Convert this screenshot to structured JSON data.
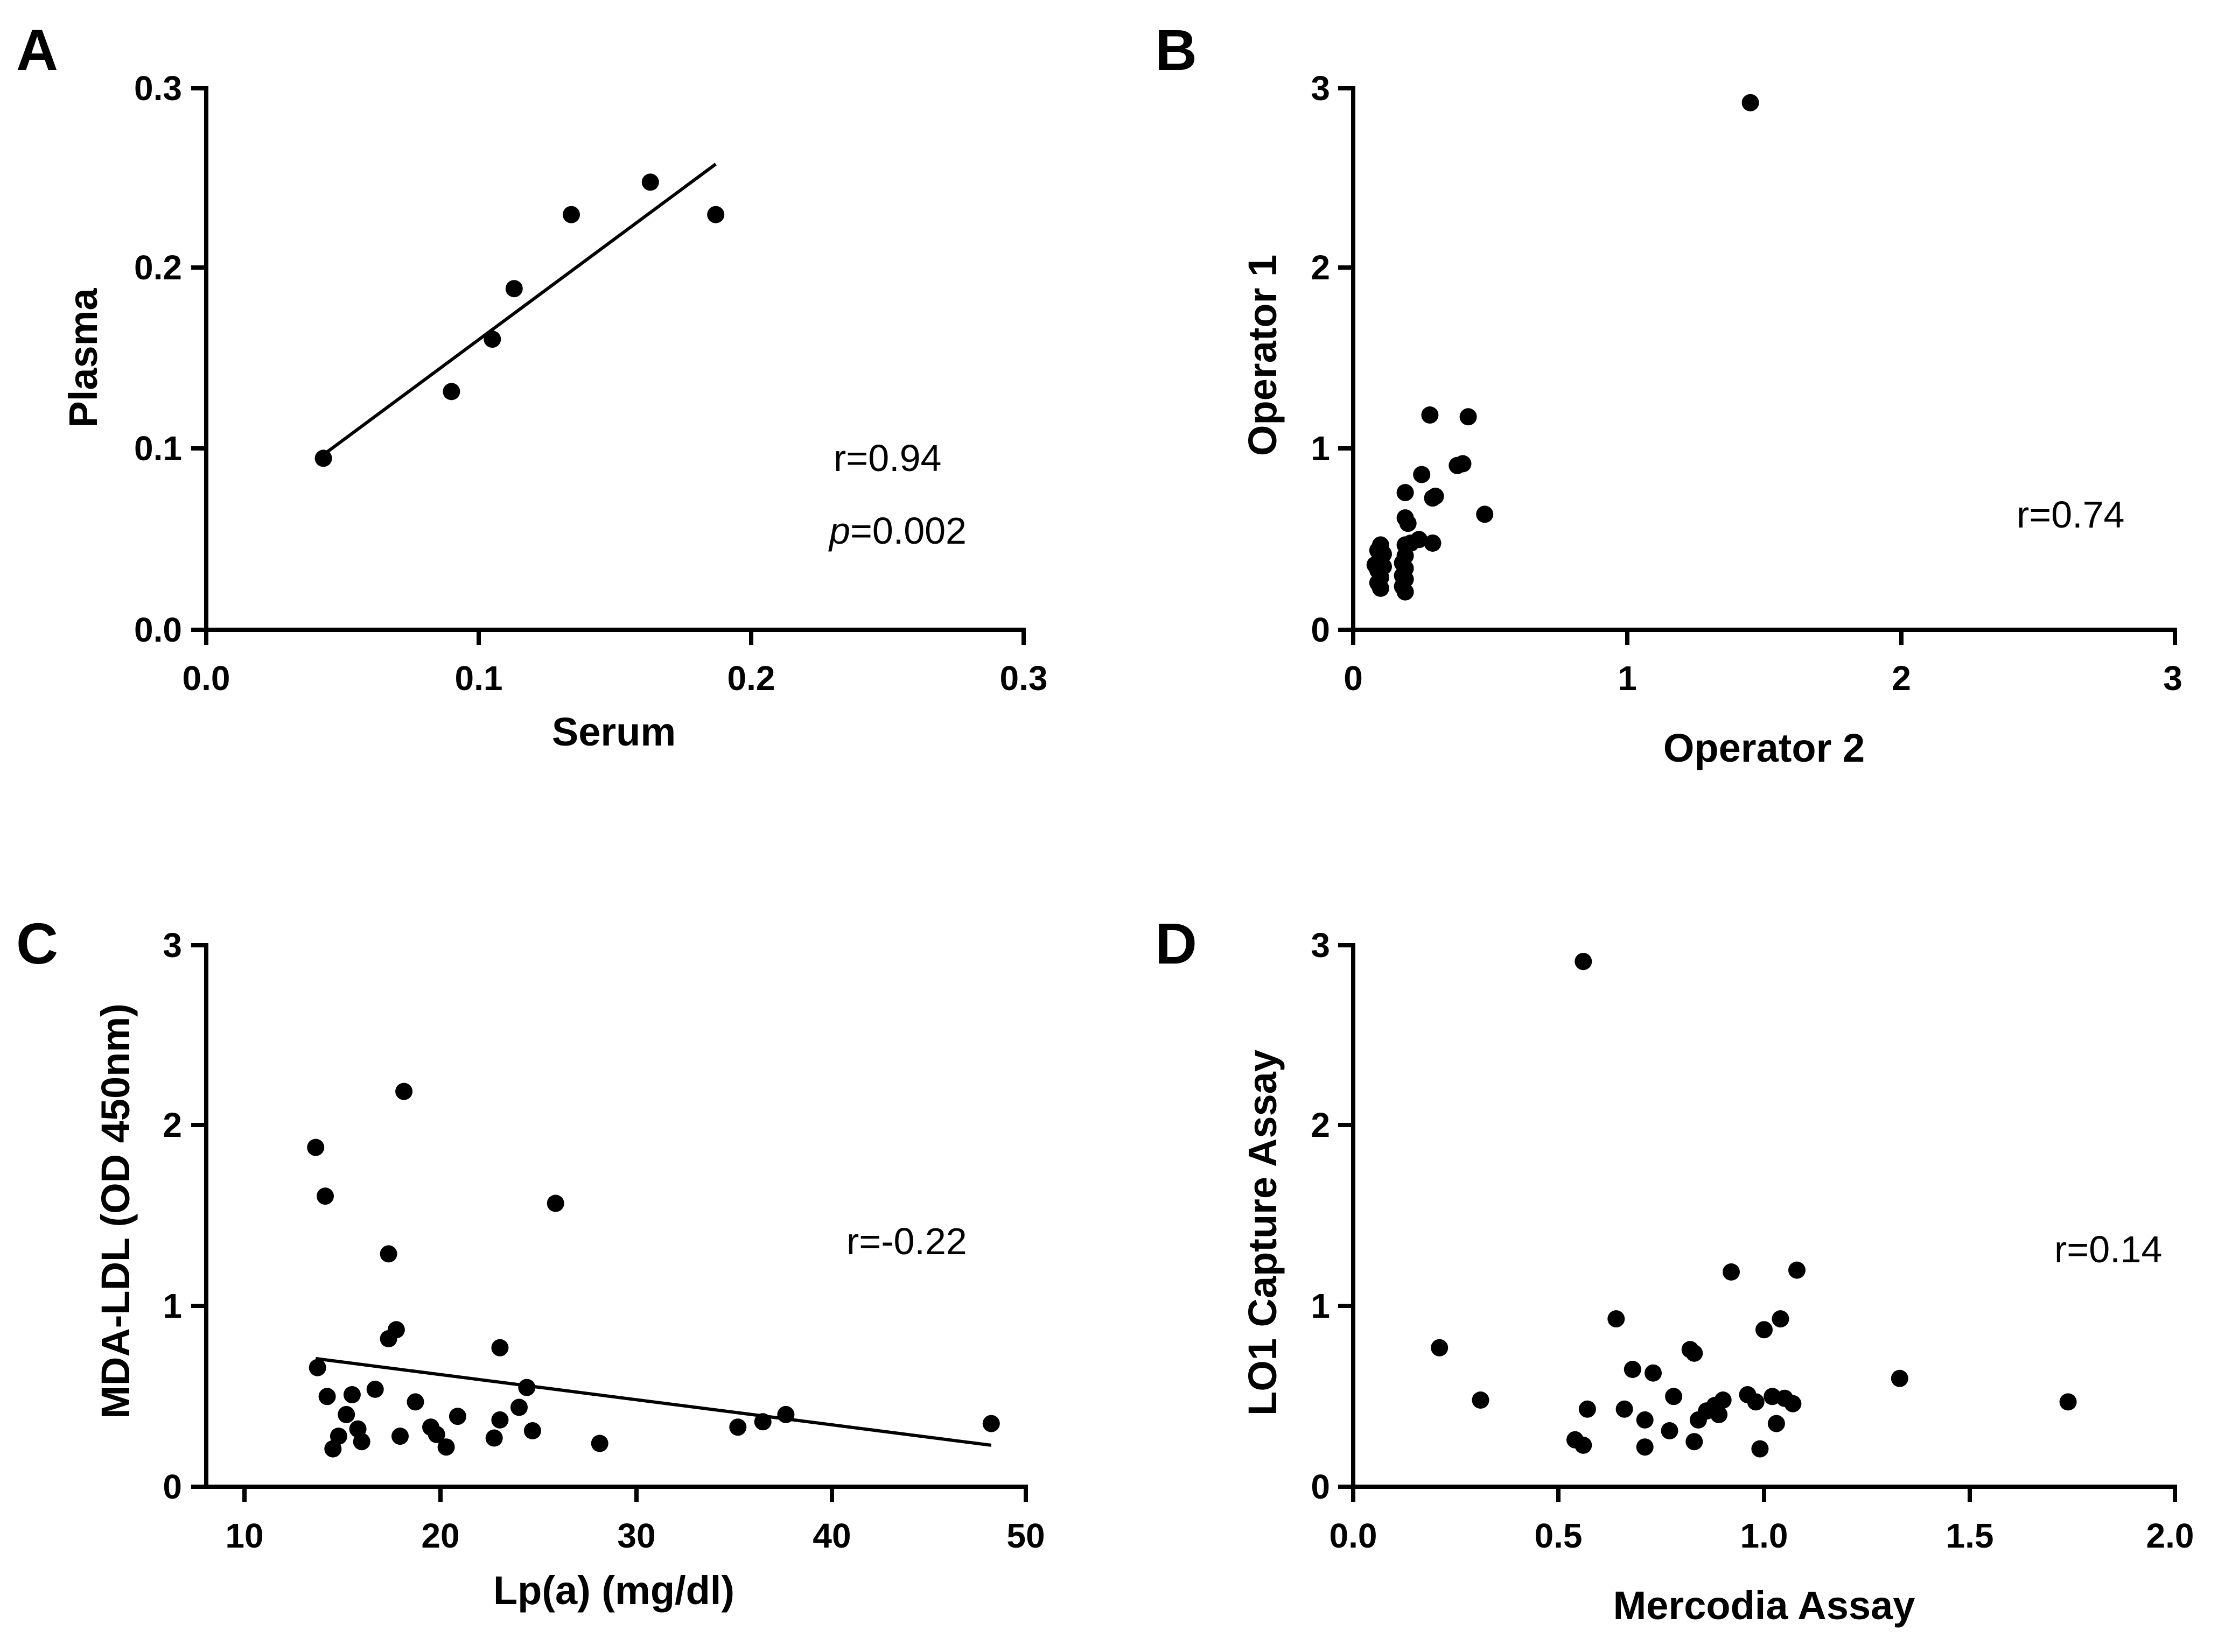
{
  "chart_data": [
    {
      "id": "A",
      "type": "scatter",
      "panel_label": "A",
      "xlabel": "Serum",
      "ylabel": "Plasma",
      "xlim": [
        0,
        0.3
      ],
      "ylim": [
        0,
        0.3
      ],
      "xticks": [
        "0.0",
        "0.1",
        "0.2",
        "0.3"
      ],
      "yticks": [
        "0.0",
        "0.1",
        "0.2",
        "0.3"
      ],
      "points": [
        [
          0.043,
          0.095
        ],
        [
          0.09,
          0.132
        ],
        [
          0.105,
          0.161
        ],
        [
          0.113,
          0.189
        ],
        [
          0.134,
          0.23
        ],
        [
          0.163,
          0.248
        ],
        [
          0.187,
          0.23
        ]
      ],
      "fit_line": [
        [
          0.043,
          0.097
        ],
        [
          0.187,
          0.258
        ]
      ],
      "annotation": {
        "r": "r=0.94",
        "p_label": "p",
        "p_value": "=0.002"
      }
    },
    {
      "id": "B",
      "type": "scatter",
      "panel_label": "B",
      "xlabel": "Operator 2",
      "ylabel": "Operator 1",
      "xlim": [
        0,
        3
      ],
      "ylim": [
        0,
        3
      ],
      "xticks": [
        "0",
        "1",
        "2",
        "3"
      ],
      "yticks": [
        "0",
        "1",
        "2",
        "3"
      ],
      "points": [
        [
          1.45,
          2.92
        ],
        [
          0.28,
          1.19
        ],
        [
          0.42,
          1.18
        ],
        [
          0.4,
          0.92
        ],
        [
          0.38,
          0.91
        ],
        [
          0.25,
          0.86
        ],
        [
          0.19,
          0.76
        ],
        [
          0.3,
          0.74
        ],
        [
          0.29,
          0.73
        ],
        [
          0.48,
          0.64
        ],
        [
          0.19,
          0.62
        ],
        [
          0.2,
          0.59
        ],
        [
          0.24,
          0.5
        ],
        [
          0.21,
          0.48
        ],
        [
          0.29,
          0.48
        ],
        [
          0.1,
          0.47
        ],
        [
          0.19,
          0.47
        ],
        [
          0.09,
          0.44
        ],
        [
          0.11,
          0.42
        ],
        [
          0.19,
          0.41
        ],
        [
          0.1,
          0.39
        ],
        [
          0.18,
          0.37
        ],
        [
          0.08,
          0.36
        ],
        [
          0.11,
          0.35
        ],
        [
          0.19,
          0.34
        ],
        [
          0.09,
          0.33
        ],
        [
          0.18,
          0.3
        ],
        [
          0.1,
          0.29
        ],
        [
          0.19,
          0.28
        ],
        [
          0.09,
          0.26
        ],
        [
          0.18,
          0.24
        ],
        [
          0.1,
          0.23
        ],
        [
          0.19,
          0.21
        ]
      ],
      "annotation": {
        "r": "r=0.74"
      }
    },
    {
      "id": "C",
      "type": "scatter",
      "panel_label": "C",
      "xlabel": "Lp(a) (mg/dl)",
      "ylabel": "MDA-LDL (OD 450nm)",
      "xlim": [
        7.3,
        50
      ],
      "ylim": [
        0,
        3
      ],
      "xtick_values": [
        10,
        20,
        30,
        40,
        50
      ],
      "xticks": [
        "10",
        "20",
        "30",
        "40",
        "50"
      ],
      "ytick_values": [
        0,
        1,
        2,
        3
      ],
      "yticks": [
        "0",
        "1",
        "2",
        "3"
      ],
      "points": [
        [
          17.6,
          2.19
        ],
        [
          13.0,
          1.88
        ],
        [
          13.5,
          1.61
        ],
        [
          25.5,
          1.57
        ],
        [
          16.8,
          1.29
        ],
        [
          17.2,
          0.87
        ],
        [
          16.8,
          0.82
        ],
        [
          22.6,
          0.77
        ],
        [
          13.1,
          0.66
        ],
        [
          24.0,
          0.55
        ],
        [
          16.1,
          0.54
        ],
        [
          14.9,
          0.51
        ],
        [
          13.6,
          0.5
        ],
        [
          18.2,
          0.47
        ],
        [
          23.6,
          0.44
        ],
        [
          37.5,
          0.4
        ],
        [
          14.6,
          0.4
        ],
        [
          20.4,
          0.39
        ],
        [
          22.6,
          0.37
        ],
        [
          36.3,
          0.36
        ],
        [
          35.0,
          0.33
        ],
        [
          19.0,
          0.33
        ],
        [
          15.2,
          0.32
        ],
        [
          24.3,
          0.31
        ],
        [
          19.3,
          0.29
        ],
        [
          17.4,
          0.28
        ],
        [
          14.2,
          0.28
        ],
        [
          22.3,
          0.27
        ],
        [
          15.4,
          0.25
        ],
        [
          27.8,
          0.24
        ],
        [
          19.8,
          0.22
        ],
        [
          13.9,
          0.21
        ],
        [
          48.2,
          0.35
        ]
      ],
      "fit_line": [
        [
          13.0,
          0.71
        ],
        [
          48.2,
          0.23
        ]
      ],
      "annotation": {
        "r": "r=-0.22"
      }
    },
    {
      "id": "D",
      "type": "scatter",
      "panel_label": "D",
      "xlabel": "Mercodia Assay",
      "ylabel": "LO1 Capture Assay",
      "xlim": [
        0,
        2
      ],
      "ylim": [
        0,
        3
      ],
      "xtick_values": [
        0,
        0.5,
        1,
        1.5,
        2
      ],
      "xticks": [
        "0.0",
        "0.5",
        "1.0",
        "1.5",
        "2.0"
      ],
      "ytick_values": [
        0,
        1,
        2,
        3
      ],
      "yticks": [
        "0",
        "1",
        "2",
        "3"
      ],
      "points": [
        [
          0.56,
          2.91
        ],
        [
          0.92,
          1.19
        ],
        [
          1.08,
          1.2
        ],
        [
          0.64,
          0.93
        ],
        [
          1.04,
          0.93
        ],
        [
          1.0,
          0.87
        ],
        [
          0.21,
          0.77
        ],
        [
          0.82,
          0.76
        ],
        [
          0.83,
          0.74
        ],
        [
          0.68,
          0.65
        ],
        [
          0.73,
          0.63
        ],
        [
          1.33,
          0.6
        ],
        [
          0.78,
          0.5
        ],
        [
          0.96,
          0.51
        ],
        [
          1.02,
          0.5
        ],
        [
          1.05,
          0.49
        ],
        [
          0.9,
          0.48
        ],
        [
          0.31,
          0.48
        ],
        [
          1.74,
          0.47
        ],
        [
          0.98,
          0.47
        ],
        [
          1.07,
          0.46
        ],
        [
          0.88,
          0.45
        ],
        [
          0.57,
          0.43
        ],
        [
          0.66,
          0.43
        ],
        [
          0.86,
          0.42
        ],
        [
          0.89,
          0.4
        ],
        [
          0.71,
          0.37
        ],
        [
          0.84,
          0.37
        ],
        [
          1.03,
          0.35
        ],
        [
          0.77,
          0.31
        ],
        [
          0.54,
          0.26
        ],
        [
          0.83,
          0.25
        ],
        [
          0.56,
          0.23
        ],
        [
          0.71,
          0.22
        ],
        [
          0.99,
          0.21
        ]
      ],
      "annotation": {
        "r": "r=0.14"
      }
    }
  ]
}
